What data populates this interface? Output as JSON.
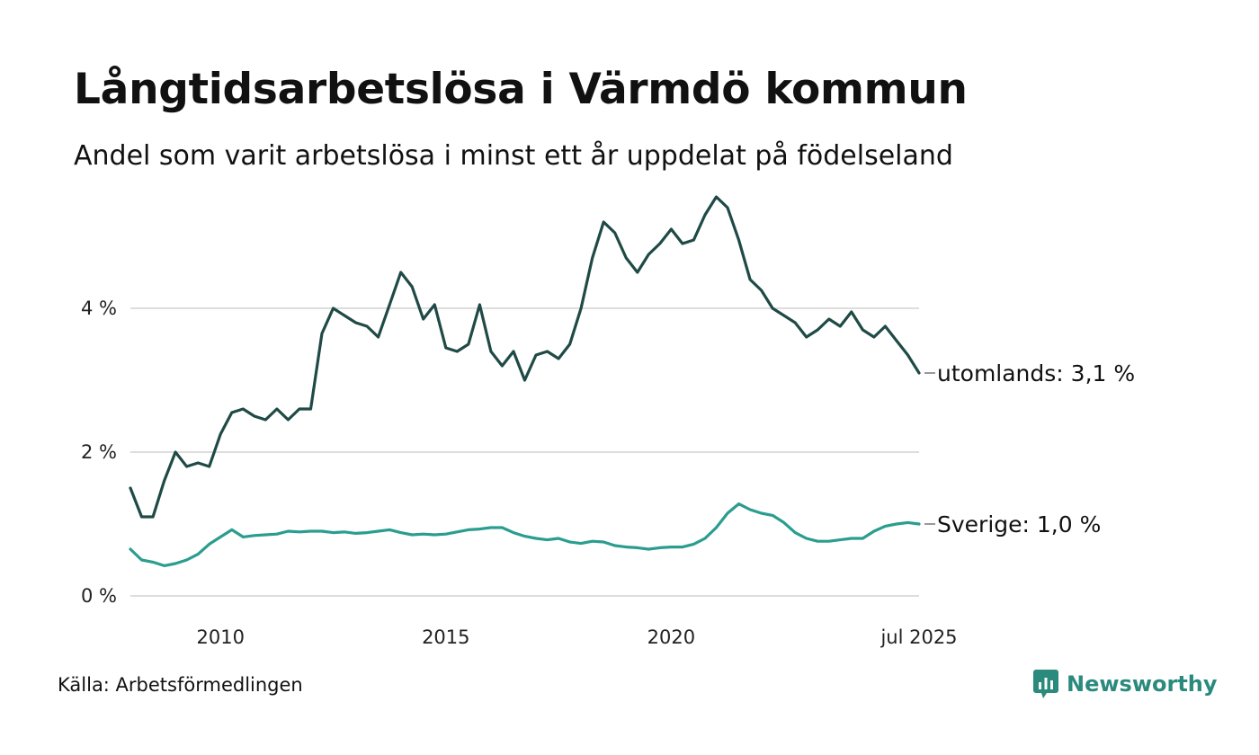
{
  "title": "Långtidsarbetslösa i Värmdö kommun",
  "subtitle": "Andel som varit arbetslösa i minst ett år uppdelat på födelseland",
  "source": "Källa: Arbetsförmedlingen",
  "brand": "Newsworthy",
  "colors": {
    "brand": "#2a8a7e",
    "grid": "#dddddd"
  },
  "chart_data": {
    "type": "line",
    "title": "Långtidsarbetslösa i Värmdö kommun",
    "subtitle": "Andel som varit arbetslösa i minst ett år uppdelat på födelseland",
    "xlabel": "",
    "ylabel": "",
    "xlim": [
      2008.0,
      2025.5
    ],
    "ylim": [
      0,
      5.6
    ],
    "y_ticks": [
      {
        "value": 0,
        "label": "0 %"
      },
      {
        "value": 2,
        "label": "2 %"
      },
      {
        "value": 4,
        "label": "4 %"
      }
    ],
    "x_ticks": [
      {
        "value": 2010,
        "label": "2010"
      },
      {
        "value": 2015,
        "label": "2015"
      },
      {
        "value": 2020,
        "label": "2020"
      },
      {
        "value": 2025.5,
        "label": "jul 2025"
      }
    ],
    "grid": true,
    "legend": "end-labels",
    "series": [
      {
        "name": "utomlands",
        "end_label": "utomlands: 3,1 %",
        "color": "#1f4a45",
        "x": [
          2008.0,
          2008.25,
          2008.5,
          2008.75,
          2009.0,
          2009.25,
          2009.5,
          2009.75,
          2010.0,
          2010.25,
          2010.5,
          2010.75,
          2011.0,
          2011.25,
          2011.5,
          2011.75,
          2012.0,
          2012.25,
          2012.5,
          2012.75,
          2013.0,
          2013.25,
          2013.5,
          2013.75,
          2014.0,
          2014.25,
          2014.5,
          2014.75,
          2015.0,
          2015.25,
          2015.5,
          2015.75,
          2016.0,
          2016.25,
          2016.5,
          2016.75,
          2017.0,
          2017.25,
          2017.5,
          2017.75,
          2018.0,
          2018.25,
          2018.5,
          2018.75,
          2019.0,
          2019.25,
          2019.5,
          2019.75,
          2020.0,
          2020.25,
          2020.5,
          2020.75,
          2021.0,
          2021.25,
          2021.5,
          2021.75,
          2022.0,
          2022.25,
          2022.5,
          2022.75,
          2023.0,
          2023.25,
          2023.5,
          2023.75,
          2024.0,
          2024.25,
          2024.5,
          2024.75,
          2025.0,
          2025.25,
          2025.5
        ],
        "values": [
          1.5,
          1.1,
          1.1,
          1.6,
          2.0,
          1.8,
          1.85,
          1.8,
          2.25,
          2.55,
          2.6,
          2.5,
          2.45,
          2.6,
          2.45,
          2.6,
          2.6,
          3.65,
          4.0,
          3.9,
          3.8,
          3.75,
          3.6,
          4.05,
          4.5,
          4.3,
          3.85,
          4.05,
          3.45,
          3.4,
          3.5,
          4.05,
          3.4,
          3.2,
          3.4,
          3.0,
          3.35,
          3.4,
          3.3,
          3.5,
          4.0,
          4.7,
          5.2,
          5.05,
          4.7,
          4.5,
          4.75,
          4.9,
          5.1,
          4.9,
          4.95,
          5.3,
          5.55,
          5.4,
          4.95,
          4.4,
          4.25,
          4.0,
          3.9,
          3.8,
          3.6,
          3.7,
          3.85,
          3.75,
          3.95,
          3.7,
          3.6,
          3.75,
          3.55,
          3.35,
          3.1
        ]
      },
      {
        "name": "Sverige",
        "end_label": "Sverige: 1,0 %",
        "color": "#2a9d8f",
        "x": [
          2008.0,
          2008.25,
          2008.5,
          2008.75,
          2009.0,
          2009.25,
          2009.5,
          2009.75,
          2010.0,
          2010.25,
          2010.5,
          2010.75,
          2011.0,
          2011.25,
          2011.5,
          2011.75,
          2012.0,
          2012.25,
          2012.5,
          2012.75,
          2013.0,
          2013.25,
          2013.5,
          2013.75,
          2014.0,
          2014.25,
          2014.5,
          2014.75,
          2015.0,
          2015.25,
          2015.5,
          2015.75,
          2016.0,
          2016.25,
          2016.5,
          2016.75,
          2017.0,
          2017.25,
          2017.5,
          2017.75,
          2018.0,
          2018.25,
          2018.5,
          2018.75,
          2019.0,
          2019.25,
          2019.5,
          2019.75,
          2020.0,
          2020.25,
          2020.5,
          2020.75,
          2021.0,
          2021.25,
          2021.5,
          2021.75,
          2022.0,
          2022.25,
          2022.5,
          2022.75,
          2023.0,
          2023.25,
          2023.5,
          2023.75,
          2024.0,
          2024.25,
          2024.5,
          2024.75,
          2025.0,
          2025.25,
          2025.5
        ],
        "values": [
          0.65,
          0.5,
          0.47,
          0.42,
          0.45,
          0.5,
          0.58,
          0.72,
          0.82,
          0.92,
          0.82,
          0.84,
          0.85,
          0.86,
          0.9,
          0.89,
          0.9,
          0.9,
          0.88,
          0.89,
          0.87,
          0.88,
          0.9,
          0.92,
          0.88,
          0.85,
          0.86,
          0.85,
          0.86,
          0.89,
          0.92,
          0.93,
          0.95,
          0.95,
          0.88,
          0.83,
          0.8,
          0.78,
          0.8,
          0.75,
          0.73,
          0.76,
          0.75,
          0.7,
          0.68,
          0.67,
          0.65,
          0.67,
          0.68,
          0.68,
          0.72,
          0.8,
          0.95,
          1.15,
          1.28,
          1.2,
          1.15,
          1.12,
          1.02,
          0.88,
          0.8,
          0.76,
          0.76,
          0.78,
          0.8,
          0.8,
          0.9,
          0.97,
          1.0,
          1.02,
          1.0
        ]
      }
    ]
  }
}
